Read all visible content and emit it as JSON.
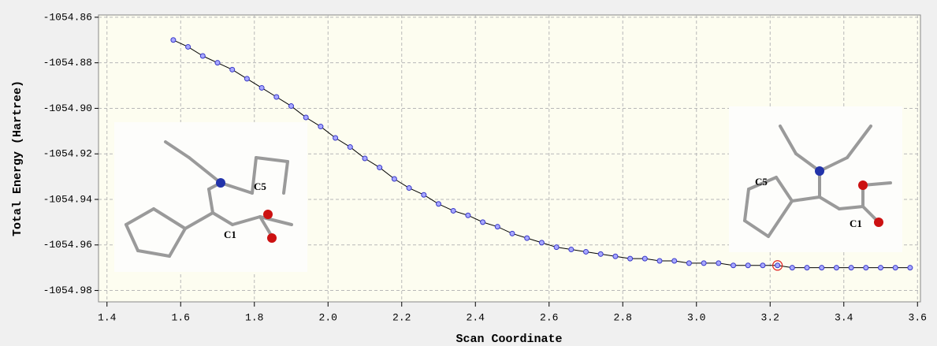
{
  "chart_data": {
    "type": "line",
    "x_label": "Scan Coordinate",
    "y_label": "Total Energy (Hartree)",
    "x": [
      1.58,
      1.62,
      1.66,
      1.7,
      1.74,
      1.78,
      1.82,
      1.86,
      1.9,
      1.94,
      1.98,
      2.02,
      2.06,
      2.1,
      2.14,
      2.18,
      2.22,
      2.26,
      2.3,
      2.34,
      2.38,
      2.42,
      2.46,
      2.5,
      2.54,
      2.58,
      2.62,
      2.66,
      2.7,
      2.74,
      2.78,
      2.82,
      2.86,
      2.9,
      2.94,
      2.98,
      3.02,
      3.06,
      3.1,
      3.14,
      3.18,
      3.22,
      3.26,
      3.3,
      3.34,
      3.38,
      3.42,
      3.46,
      3.5,
      3.54,
      3.58
    ],
    "series": [
      {
        "color": "#000000",
        "marker_color": "#a8a8ff",
        "marker_edge": "#3a3ac8",
        "values": [
          -1054.87,
          -1054.873,
          -1054.877,
          -1054.88,
          -1054.883,
          -1054.887,
          -1054.891,
          -1054.895,
          -1054.899,
          -1054.904,
          -1054.908,
          -1054.913,
          -1054.917,
          -1054.922,
          -1054.926,
          -1054.931,
          -1054.935,
          -1054.938,
          -1054.942,
          -1054.945,
          -1054.947,
          -1054.95,
          -1054.952,
          -1054.955,
          -1054.957,
          -1054.959,
          -1054.961,
          -1054.962,
          -1054.963,
          -1054.964,
          -1054.965,
          -1054.966,
          -1054.966,
          -1054.967,
          -1054.967,
          -1054.968,
          -1054.968,
          -1054.968,
          -1054.969,
          -1054.969,
          -1054.969,
          -1054.969,
          -1054.97,
          -1054.97,
          -1054.97,
          -1054.97,
          -1054.97,
          -1054.97,
          -1054.97,
          -1054.97,
          -1054.97
        ]
      }
    ],
    "highlighted_point": 41,
    "highlight_color": "#e02020",
    "xlim": [
      1.377,
      3.608
    ],
    "ylim": [
      -1054.985,
      -1054.859
    ],
    "xticks": [
      1.4,
      1.6,
      1.8,
      {
        "value": 2.0,
        "label": "2.0"
      },
      2.2,
      2.4,
      2.6,
      2.8,
      {
        "value": 3.0,
        "label": "3.0"
      },
      3.2,
      3.4,
      3.6
    ],
    "yticks": [
      -1054.86,
      -1054.88,
      {
        "value": -1054.9,
        "label": "-1054.90"
      },
      -1054.92,
      -1054.94,
      -1054.96,
      -1054.98
    ],
    "grid": true,
    "annotations": [
      "C5",
      "C1",
      "C5",
      "C1"
    ]
  }
}
